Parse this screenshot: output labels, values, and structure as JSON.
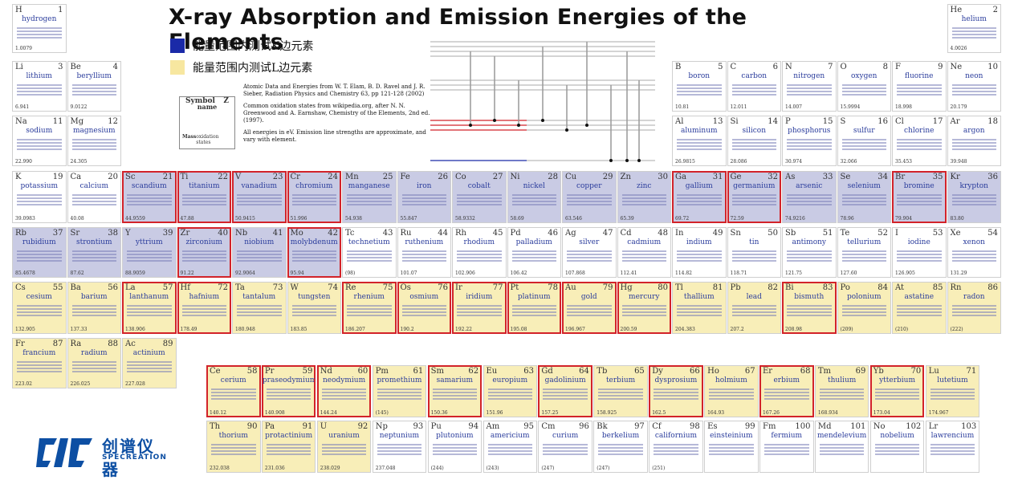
{
  "title": "X-ray Absorption and Emission Energies of the Elements",
  "legend": [
    {
      "label": "能量范围内测试K边元素",
      "color": "#1a2aa8"
    },
    {
      "label": "能量范围内测试L边元素",
      "color": "#f7e7a0"
    }
  ],
  "info": {
    "p1": "Atomic Data and Energies from W. T. Elam, B. D. Ravel and J. R. Sieber, Radiation Physics and Chemistry 63, pp 121-128 (2002)",
    "p2": "Common oxidation states from wikipedia.org, after N. N. Greenwood and A. Earnshaw, Chemistry of the Elements, 2nd ed. (1997).",
    "p3": "All energies in eV. Emission line strengths are approximate, and vary with element."
  },
  "key": {
    "symbol": "Symbol",
    "z": "Z",
    "name": "name",
    "mass": "Mass",
    "ox": "oxidation states"
  },
  "logo": {
    "cn": "创谱仪器",
    "en": "SPECREATION"
  },
  "elements": [
    {
      "s": "H",
      "z": 1,
      "n": "hydrogen",
      "m": "1.0079",
      "c": 0,
      "r": 0,
      "t": "w"
    },
    {
      "s": "He",
      "z": 2,
      "n": "helium",
      "m": "4.0026",
      "c": 17,
      "r": 0,
      "t": "w"
    },
    {
      "s": "Li",
      "z": 3,
      "n": "lithium",
      "m": "6.941",
      "c": 0,
      "r": 1,
      "t": "w"
    },
    {
      "s": "Be",
      "z": 4,
      "n": "beryllium",
      "m": "9.0122",
      "c": 1,
      "r": 1,
      "t": "w"
    },
    {
      "s": "B",
      "z": 5,
      "n": "boron",
      "m": "10.81",
      "c": 12,
      "r": 1,
      "t": "w"
    },
    {
      "s": "C",
      "z": 6,
      "n": "carbon",
      "m": "12.011",
      "c": 13,
      "r": 1,
      "t": "w"
    },
    {
      "s": "N",
      "z": 7,
      "n": "nitrogen",
      "m": "14.007",
      "c": 14,
      "r": 1,
      "t": "w"
    },
    {
      "s": "O",
      "z": 8,
      "n": "oxygen",
      "m": "15.9994",
      "c": 15,
      "r": 1,
      "t": "w"
    },
    {
      "s": "F",
      "z": 9,
      "n": "fluorine",
      "m": "18.998",
      "c": 16,
      "r": 1,
      "t": "w"
    },
    {
      "s": "Ne",
      "z": 10,
      "n": "neon",
      "m": "20.179",
      "c": 17,
      "r": 1,
      "t": "w"
    },
    {
      "s": "Na",
      "z": 11,
      "n": "sodium",
      "m": "22.990",
      "c": 0,
      "r": 2,
      "t": "w"
    },
    {
      "s": "Mg",
      "z": 12,
      "n": "magnesium",
      "m": "24.305",
      "c": 1,
      "r": 2,
      "t": "w"
    },
    {
      "s": "Al",
      "z": 13,
      "n": "aluminum",
      "m": "26.9815",
      "c": 12,
      "r": 2,
      "t": "w"
    },
    {
      "s": "Si",
      "z": 14,
      "n": "silicon",
      "m": "28.086",
      "c": 13,
      "r": 2,
      "t": "w"
    },
    {
      "s": "P",
      "z": 15,
      "n": "phosphorus",
      "m": "30.974",
      "c": 14,
      "r": 2,
      "t": "w"
    },
    {
      "s": "S",
      "z": 16,
      "n": "sulfur",
      "m": "32.066",
      "c": 15,
      "r": 2,
      "t": "w"
    },
    {
      "s": "Cl",
      "z": 17,
      "n": "chlorine",
      "m": "35.453",
      "c": 16,
      "r": 2,
      "t": "w"
    },
    {
      "s": "Ar",
      "z": 18,
      "n": "argon",
      "m": "39.948",
      "c": 17,
      "r": 2,
      "t": "w"
    },
    {
      "s": "K",
      "z": 19,
      "n": "potassium",
      "m": "39.0983",
      "c": 0,
      "r": 3,
      "t": "w"
    },
    {
      "s": "Ca",
      "z": 20,
      "n": "calcium",
      "m": "40.08",
      "c": 1,
      "r": 3,
      "t": "w"
    },
    {
      "s": "Sc",
      "z": 21,
      "n": "scandium",
      "m": "44.9559",
      "c": 2,
      "r": 3,
      "t": "k",
      "h": 1
    },
    {
      "s": "Ti",
      "z": 22,
      "n": "titanium",
      "m": "47.88",
      "c": 3,
      "r": 3,
      "t": "k",
      "h": 1
    },
    {
      "s": "V",
      "z": 23,
      "n": "vanadium",
      "m": "50.9415",
      "c": 4,
      "r": 3,
      "t": "k",
      "h": 1
    },
    {
      "s": "Cr",
      "z": 24,
      "n": "chromium",
      "m": "51.996",
      "c": 5,
      "r": 3,
      "t": "k",
      "h": 1
    },
    {
      "s": "Mn",
      "z": 25,
      "n": "manganese",
      "m": "54.938",
      "c": 6,
      "r": 3,
      "t": "k"
    },
    {
      "s": "Fe",
      "z": 26,
      "n": "iron",
      "m": "55.847",
      "c": 7,
      "r": 3,
      "t": "k"
    },
    {
      "s": "Co",
      "z": 27,
      "n": "cobalt",
      "m": "58.9332",
      "c": 8,
      "r": 3,
      "t": "k"
    },
    {
      "s": "Ni",
      "z": 28,
      "n": "nickel",
      "m": "58.69",
      "c": 9,
      "r": 3,
      "t": "k"
    },
    {
      "s": "Cu",
      "z": 29,
      "n": "copper",
      "m": "63.546",
      "c": 10,
      "r": 3,
      "t": "k"
    },
    {
      "s": "Zn",
      "z": 30,
      "n": "zinc",
      "m": "65.39",
      "c": 11,
      "r": 3,
      "t": "k"
    },
    {
      "s": "Ga",
      "z": 31,
      "n": "gallium",
      "m": "69.72",
      "c": 12,
      "r": 3,
      "t": "k",
      "h": 1
    },
    {
      "s": "Ge",
      "z": 32,
      "n": "germanium",
      "m": "72.59",
      "c": 13,
      "r": 3,
      "t": "k",
      "h": 1
    },
    {
      "s": "As",
      "z": 33,
      "n": "arsenic",
      "m": "74.9216",
      "c": 14,
      "r": 3,
      "t": "k"
    },
    {
      "s": "Se",
      "z": 34,
      "n": "selenium",
      "m": "78.96",
      "c": 15,
      "r": 3,
      "t": "k"
    },
    {
      "s": "Br",
      "z": 35,
      "n": "bromine",
      "m": "79.904",
      "c": 16,
      "r": 3,
      "t": "k",
      "h": 1
    },
    {
      "s": "Kr",
      "z": 36,
      "n": "krypton",
      "m": "83.80",
      "c": 17,
      "r": 3,
      "t": "k"
    },
    {
      "s": "Rb",
      "z": 37,
      "n": "rubidium",
      "m": "85.4678",
      "c": 0,
      "r": 4,
      "t": "k"
    },
    {
      "s": "Sr",
      "z": 38,
      "n": "strontium",
      "m": "87.62",
      "c": 1,
      "r": 4,
      "t": "k"
    },
    {
      "s": "Y",
      "z": 39,
      "n": "yttrium",
      "m": "88.9059",
      "c": 2,
      "r": 4,
      "t": "k"
    },
    {
      "s": "Zr",
      "z": 40,
      "n": "zirconium",
      "m": "91.22",
      "c": 3,
      "r": 4,
      "t": "k",
      "h": 1
    },
    {
      "s": "Nb",
      "z": 41,
      "n": "niobium",
      "m": "92.9064",
      "c": 4,
      "r": 4,
      "t": "k"
    },
    {
      "s": "Mo",
      "z": 42,
      "n": "molybdenum",
      "m": "95.94",
      "c": 5,
      "r": 4,
      "t": "k",
      "h": 1
    },
    {
      "s": "Tc",
      "z": 43,
      "n": "technetium",
      "m": "(98)",
      "c": 6,
      "r": 4,
      "t": "w"
    },
    {
      "s": "Ru",
      "z": 44,
      "n": "ruthenium",
      "m": "101.07",
      "c": 7,
      "r": 4,
      "t": "w"
    },
    {
      "s": "Rh",
      "z": 45,
      "n": "rhodium",
      "m": "102.906",
      "c": 8,
      "r": 4,
      "t": "w"
    },
    {
      "s": "Pd",
      "z": 46,
      "n": "palladium",
      "m": "106.42",
      "c": 9,
      "r": 4,
      "t": "w"
    },
    {
      "s": "Ag",
      "z": 47,
      "n": "silver",
      "m": "107.868",
      "c": 10,
      "r": 4,
      "t": "w"
    },
    {
      "s": "Cd",
      "z": 48,
      "n": "cadmium",
      "m": "112.41",
      "c": 11,
      "r": 4,
      "t": "w"
    },
    {
      "s": "In",
      "z": 49,
      "n": "indium",
      "m": "114.82",
      "c": 12,
      "r": 4,
      "t": "w"
    },
    {
      "s": "Sn",
      "z": 50,
      "n": "tin",
      "m": "118.71",
      "c": 13,
      "r": 4,
      "t": "w"
    },
    {
      "s": "Sb",
      "z": 51,
      "n": "antimony",
      "m": "121.75",
      "c": 14,
      "r": 4,
      "t": "w"
    },
    {
      "s": "Te",
      "z": 52,
      "n": "tellurium",
      "m": "127.60",
      "c": 15,
      "r": 4,
      "t": "w"
    },
    {
      "s": "I",
      "z": 53,
      "n": "iodine",
      "m": "126.905",
      "c": 16,
      "r": 4,
      "t": "w"
    },
    {
      "s": "Xe",
      "z": 54,
      "n": "xenon",
      "m": "131.29",
      "c": 17,
      "r": 4,
      "t": "w"
    },
    {
      "s": "Cs",
      "z": 55,
      "n": "cesium",
      "m": "132.905",
      "c": 0,
      "r": 5,
      "t": "l"
    },
    {
      "s": "Ba",
      "z": 56,
      "n": "barium",
      "m": "137.33",
      "c": 1,
      "r": 5,
      "t": "l"
    },
    {
      "s": "La",
      "z": 57,
      "n": "lanthanum",
      "m": "138.906",
      "c": 2,
      "r": 5,
      "t": "l",
      "h": 1
    },
    {
      "s": "Hf",
      "z": 72,
      "n": "hafnium",
      "m": "178.49",
      "c": 3,
      "r": 5,
      "t": "l",
      "h": 1
    },
    {
      "s": "Ta",
      "z": 73,
      "n": "tantalum",
      "m": "180.948",
      "c": 4,
      "r": 5,
      "t": "l"
    },
    {
      "s": "W",
      "z": 74,
      "n": "tungsten",
      "m": "183.85",
      "c": 5,
      "r": 5,
      "t": "l"
    },
    {
      "s": "Re",
      "z": 75,
      "n": "rhenium",
      "m": "186.207",
      "c": 6,
      "r": 5,
      "t": "l",
      "h": 1
    },
    {
      "s": "Os",
      "z": 76,
      "n": "osmium",
      "m": "190.2",
      "c": 7,
      "r": 5,
      "t": "l",
      "h": 1
    },
    {
      "s": "Ir",
      "z": 77,
      "n": "iridium",
      "m": "192.22",
      "c": 8,
      "r": 5,
      "t": "l",
      "h": 1
    },
    {
      "s": "Pt",
      "z": 78,
      "n": "platinum",
      "m": "195.08",
      "c": 9,
      "r": 5,
      "t": "l",
      "h": 1
    },
    {
      "s": "Au",
      "z": 79,
      "n": "gold",
      "m": "196.967",
      "c": 10,
      "r": 5,
      "t": "l",
      "h": 1
    },
    {
      "s": "Hg",
      "z": 80,
      "n": "mercury",
      "m": "200.59",
      "c": 11,
      "r": 5,
      "t": "l",
      "h": 1
    },
    {
      "s": "Tl",
      "z": 81,
      "n": "thallium",
      "m": "204.383",
      "c": 12,
      "r": 5,
      "t": "l"
    },
    {
      "s": "Pb",
      "z": 82,
      "n": "lead",
      "m": "207.2",
      "c": 13,
      "r": 5,
      "t": "l"
    },
    {
      "s": "Bi",
      "z": 83,
      "n": "bismuth",
      "m": "208.98",
      "c": 14,
      "r": 5,
      "t": "l",
      "h": 1
    },
    {
      "s": "Po",
      "z": 84,
      "n": "polonium",
      "m": "(209)",
      "c": 15,
      "r": 5,
      "t": "l"
    },
    {
      "s": "At",
      "z": 85,
      "n": "astatine",
      "m": "(210)",
      "c": 16,
      "r": 5,
      "t": "l"
    },
    {
      "s": "Rn",
      "z": 86,
      "n": "radon",
      "m": "(222)",
      "c": 17,
      "r": 5,
      "t": "l"
    },
    {
      "s": "Fr",
      "z": 87,
      "n": "francium",
      "m": "223.02",
      "c": 0,
      "r": 6,
      "t": "l"
    },
    {
      "s": "Ra",
      "z": 88,
      "n": "radium",
      "m": "226.025",
      "c": 1,
      "r": 6,
      "t": "l"
    },
    {
      "s": "Ac",
      "z": 89,
      "n": "actinium",
      "m": "227.028",
      "c": 2,
      "r": 6,
      "t": "l"
    },
    {
      "s": "Ce",
      "z": 58,
      "n": "cerium",
      "m": "140.12",
      "c": 0,
      "r": 7,
      "t": "l",
      "h": 1
    },
    {
      "s": "Pr",
      "z": 59,
      "n": "praseodymium",
      "m": "140.908",
      "c": 1,
      "r": 7,
      "t": "l",
      "h": 1
    },
    {
      "s": "Nd",
      "z": 60,
      "n": "neodymium",
      "m": "144.24",
      "c": 2,
      "r": 7,
      "t": "l",
      "h": 1
    },
    {
      "s": "Pm",
      "z": 61,
      "n": "promethium",
      "m": "(145)",
      "c": 3,
      "r": 7,
      "t": "l"
    },
    {
      "s": "Sm",
      "z": 62,
      "n": "samarium",
      "m": "150.36",
      "c": 4,
      "r": 7,
      "t": "l",
      "h": 1
    },
    {
      "s": "Eu",
      "z": 63,
      "n": "europium",
      "m": "151.96",
      "c": 5,
      "r": 7,
      "t": "l"
    },
    {
      "s": "Gd",
      "z": 64,
      "n": "gadolinium",
      "m": "157.25",
      "c": 6,
      "r": 7,
      "t": "l",
      "h": 1
    },
    {
      "s": "Tb",
      "z": 65,
      "n": "terbium",
      "m": "158.925",
      "c": 7,
      "r": 7,
      "t": "l"
    },
    {
      "s": "Dy",
      "z": 66,
      "n": "dysprosium",
      "m": "162.5",
      "c": 8,
      "r": 7,
      "t": "l",
      "h": 1
    },
    {
      "s": "Ho",
      "z": 67,
      "n": "holmium",
      "m": "164.93",
      "c": 9,
      "r": 7,
      "t": "l"
    },
    {
      "s": "Er",
      "z": 68,
      "n": "erbium",
      "m": "167.26",
      "c": 10,
      "r": 7,
      "t": "l",
      "h": 1
    },
    {
      "s": "Tm",
      "z": 69,
      "n": "thulium",
      "m": "168.934",
      "c": 11,
      "r": 7,
      "t": "l"
    },
    {
      "s": "Yb",
      "z": 70,
      "n": "ytterbium",
      "m": "173.04",
      "c": 12,
      "r": 7,
      "t": "l",
      "h": 1
    },
    {
      "s": "Lu",
      "z": 71,
      "n": "lutetium",
      "m": "174.967",
      "c": 13,
      "r": 7,
      "t": "l"
    },
    {
      "s": "Th",
      "z": 90,
      "n": "thorium",
      "m": "232.038",
      "c": 0,
      "r": 8,
      "t": "l"
    },
    {
      "s": "Pa",
      "z": 91,
      "n": "protactinium",
      "m": "231.036",
      "c": 1,
      "r": 8,
      "t": "l"
    },
    {
      "s": "U",
      "z": 92,
      "n": "uranium",
      "m": "238.029",
      "c": 2,
      "r": 8,
      "t": "l"
    },
    {
      "s": "Np",
      "z": 93,
      "n": "neptunium",
      "m": "237.048",
      "c": 3,
      "r": 8,
      "t": "w"
    },
    {
      "s": "Pu",
      "z": 94,
      "n": "plutonium",
      "m": "(244)",
      "c": 4,
      "r": 8,
      "t": "w"
    },
    {
      "s": "Am",
      "z": 95,
      "n": "americium",
      "m": "(243)",
      "c": 5,
      "r": 8,
      "t": "w"
    },
    {
      "s": "Cm",
      "z": 96,
      "n": "curium",
      "m": "(247)",
      "c": 6,
      "r": 8,
      "t": "w"
    },
    {
      "s": "Bk",
      "z": 97,
      "n": "berkelium",
      "m": "(247)",
      "c": 7,
      "r": 8,
      "t": "w"
    },
    {
      "s": "Cf",
      "z": 98,
      "n": "californium",
      "m": "(251)",
      "c": 8,
      "r": 8,
      "t": "w"
    },
    {
      "s": "Es",
      "z": 99,
      "n": "einsteinium",
      "m": "",
      "c": 9,
      "r": 8,
      "t": "w"
    },
    {
      "s": "Fm",
      "z": 100,
      "n": "fermium",
      "m": "",
      "c": 10,
      "r": 8,
      "t": "w"
    },
    {
      "s": "Md",
      "z": 101,
      "n": "mendelevium",
      "m": "",
      "c": 11,
      "r": 8,
      "t": "w"
    },
    {
      "s": "No",
      "z": 102,
      "n": "nobelium",
      "m": "",
      "c": 12,
      "r": 8,
      "t": "w"
    },
    {
      "s": "Lr",
      "z": 103,
      "n": "lawrencium",
      "m": "",
      "c": 13,
      "r": 8,
      "t": "w"
    }
  ]
}
